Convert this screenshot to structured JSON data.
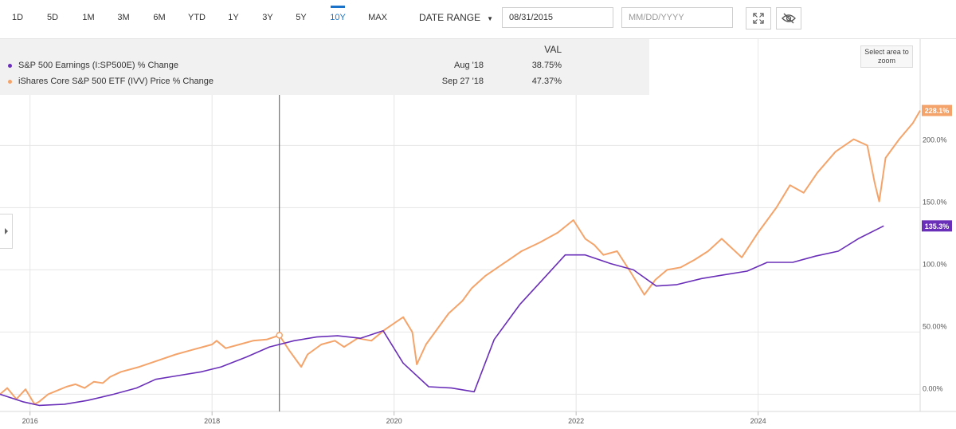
{
  "toolbar": {
    "ranges": [
      "1D",
      "5D",
      "1M",
      "3M",
      "6M",
      "YTD",
      "1Y",
      "3Y",
      "5Y",
      "10Y",
      "MAX"
    ],
    "active_range": "10Y",
    "date_range_label": "DATE RANGE",
    "start_date": "08/31/2015",
    "end_placeholder": "MM/DD/YYYY",
    "icons": [
      "expand-icon",
      "hide-eye-icon"
    ]
  },
  "legend": {
    "header": "VAL",
    "rows": [
      {
        "name": "S&P 500 Earnings (I:SP500E) % Change",
        "date": "Aug '18",
        "value": "38.75%",
        "color": "#6a2fb8"
      },
      {
        "name": "iShares Core S&P 500 ETF (IVV) Price % Change",
        "date": "Sep 27 '18",
        "value": "47.37%",
        "color": "#f4a46a"
      }
    ]
  },
  "zoom_note": "Select area to zoom",
  "chart_data": {
    "type": "line",
    "xlabel": "",
    "ylabel": "",
    "xlim": [
      2015.67,
      2025.78
    ],
    "ylim": [
      -10,
      240
    ],
    "x_ticks": [
      2016,
      2018,
      2020,
      2022,
      2024
    ],
    "x_tick_labels": [
      "2016",
      "2018",
      "2020",
      "2022",
      "2024"
    ],
    "y_ticks": [
      0,
      50,
      100,
      150,
      200
    ],
    "y_tick_labels": [
      "0.00%",
      "50.00%",
      "100.0%",
      "150.0%",
      "200.0%"
    ],
    "grid": true,
    "crosshair_x": 2018.74,
    "series": [
      {
        "name": "S&P 500 Earnings (I:SP500E) % Change",
        "color": "#6a2fb8",
        "end_label": "135.3%",
        "x": [
          2015.67,
          2015.92,
          2016.1,
          2016.38,
          2016.63,
          2016.92,
          2017.17,
          2017.38,
          2017.63,
          2017.88,
          2018.1,
          2018.38,
          2018.63,
          2018.9,
          2019.15,
          2019.38,
          2019.63,
          2019.88,
          2020.1,
          2020.38,
          2020.63,
          2020.88,
          2021.1,
          2021.38,
          2021.63,
          2021.88,
          2022.1,
          2022.38,
          2022.63,
          2022.88,
          2023.1,
          2023.38,
          2023.63,
          2023.88,
          2024.1,
          2024.38,
          2024.63,
          2024.88,
          2025.1,
          2025.38
        ],
        "values": [
          0,
          -6,
          -9,
          -8,
          -5,
          0,
          5,
          12,
          15,
          18,
          22,
          30,
          38,
          43,
          46,
          47,
          45,
          51,
          25,
          6,
          5,
          2,
          44,
          72,
          92,
          112,
          112,
          105,
          100,
          87,
          88,
          93,
          96,
          99,
          106,
          106,
          111,
          115,
          125,
          135.3
        ]
      },
      {
        "name": "iShares Core S&P 500 ETF (IVV) Price % Change",
        "color": "#f4a46a",
        "end_label": "228.1%",
        "x": [
          2015.67,
          2015.75,
          2015.85,
          2015.95,
          2016.05,
          2016.1,
          2016.2,
          2016.3,
          2016.4,
          2016.5,
          2016.6,
          2016.7,
          2016.8,
          2016.88,
          2017.0,
          2017.2,
          2017.4,
          2017.6,
          2017.8,
          2018.0,
          2018.05,
          2018.15,
          2018.3,
          2018.45,
          2018.6,
          2018.74,
          2018.85,
          2018.98,
          2019.05,
          2019.2,
          2019.35,
          2019.45,
          2019.6,
          2019.75,
          2019.9,
          2020.1,
          2020.2,
          2020.25,
          2020.35,
          2020.45,
          2020.6,
          2020.75,
          2020.85,
          2021.0,
          2021.2,
          2021.4,
          2021.6,
          2021.8,
          2021.97,
          2022.1,
          2022.2,
          2022.3,
          2022.45,
          2022.6,
          2022.75,
          2022.87,
          2023.0,
          2023.15,
          2023.3,
          2023.45,
          2023.6,
          2023.82,
          2024.0,
          2024.2,
          2024.35,
          2024.5,
          2024.65,
          2024.85,
          2025.05,
          2025.2,
          2025.28,
          2025.33,
          2025.4,
          2025.55,
          2025.7,
          2025.78
        ],
        "values": [
          0,
          5,
          -4,
          4,
          -8,
          -6,
          0,
          3,
          6,
          8,
          5,
          10,
          9,
          14,
          18,
          22,
          27,
          32,
          36,
          40,
          43,
          37,
          40,
          43,
          44,
          47.4,
          35,
          22,
          32,
          40,
          43,
          38,
          45,
          43,
          52,
          62,
          50,
          24,
          40,
          50,
          65,
          75,
          85,
          95,
          105,
          115,
          122,
          130,
          140,
          125,
          120,
          112,
          115,
          98,
          80,
          92,
          100,
          102,
          108,
          115,
          125,
          110,
          130,
          150,
          168,
          162,
          178,
          195,
          205,
          200,
          170,
          155,
          190,
          205,
          218,
          228.1
        ]
      }
    ]
  }
}
